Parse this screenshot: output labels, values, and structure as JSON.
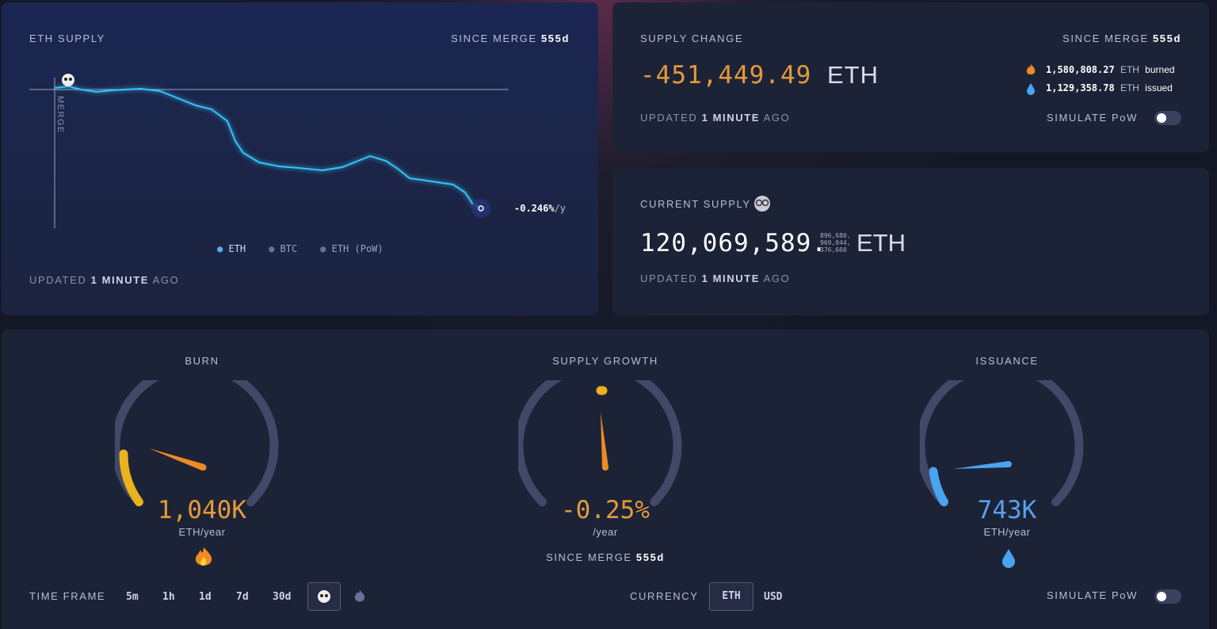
{
  "supply_chart": {
    "title": "ETH SUPPLY",
    "since_label": "SINCE MERGE",
    "since_value": "555d",
    "merge_label": "MERGE",
    "rate": "-0.246%",
    "rate_unit": "/y",
    "legend": [
      "ETH",
      "BTC",
      "ETH (PoW)"
    ],
    "updated": {
      "prefix": "UPDATED",
      "strong": "1 MINUTE",
      "suffix": "AGO"
    }
  },
  "supply_change": {
    "title": "SUPPLY CHANGE",
    "since_label": "SINCE MERGE",
    "since_value": "555d",
    "value": "-451,449.49",
    "unit": "ETH",
    "burned": {
      "value": "1,580,808.27",
      "unit": "ETH",
      "label": "burned"
    },
    "issued": {
      "value": "1,129,358.78",
      "unit": "ETH",
      "label": "issued"
    },
    "updated": {
      "prefix": "UPDATED",
      "strong": "1 MINUTE",
      "suffix": "AGO"
    },
    "simulate": "SIMULATE PoW"
  },
  "current_supply": {
    "title": "CURRENT SUPPLY",
    "value": "120,069,589.",
    "decimals": [
      "896,680,",
      "969,044,",
      "376,660"
    ],
    "unit": "ETH",
    "updated": {
      "prefix": "UPDATED",
      "strong": "1 MINUTE",
      "suffix": "AGO"
    }
  },
  "gauges": [
    {
      "title": "BURN",
      "value": "1,040K",
      "unit": "ETH/year"
    },
    {
      "title": "SUPPLY GROWTH",
      "value": "-0.25%",
      "unit": "/year",
      "since_label": "SINCE MERGE",
      "since_value": "555d"
    },
    {
      "title": "ISSUANCE",
      "value": "743K",
      "unit": "ETH/year"
    }
  ],
  "controls": {
    "time_frame": "TIME FRAME",
    "frames": [
      "5m",
      "1h",
      "1d",
      "7d",
      "30d"
    ],
    "currency": "CURRENCY",
    "currencies": [
      "ETH",
      "USD"
    ],
    "simulate": "SIMULATE PoW"
  }
}
